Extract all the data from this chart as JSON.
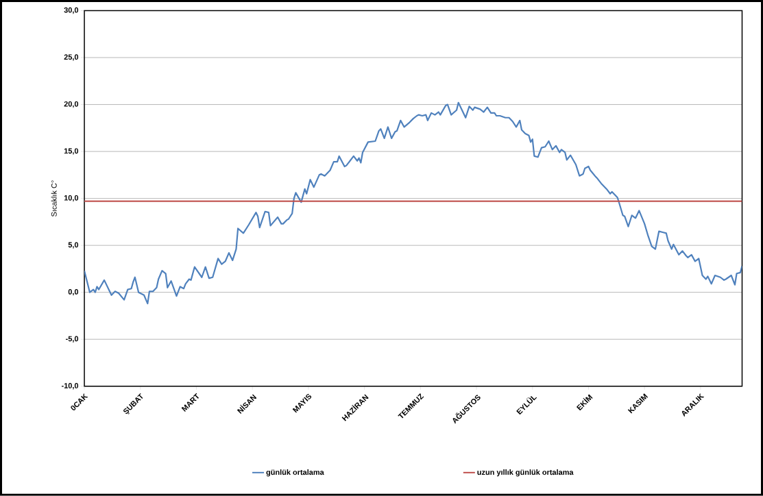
{
  "chart_data": {
    "type": "line",
    "ylabel": "Sıcaklık C°",
    "categories": [
      "0CAK",
      null,
      null,
      null,
      null,
      null,
      null,
      null,
      null,
      null,
      null,
      null,
      null,
      null,
      null,
      null,
      null,
      null,
      null,
      null,
      null,
      null,
      null,
      null,
      null,
      null,
      null,
      null,
      null,
      null,
      null,
      "ŞUBAT",
      null,
      null,
      null,
      null,
      null,
      null,
      null,
      null,
      null,
      null,
      null,
      null,
      null,
      null,
      null,
      null,
      null,
      null,
      null,
      null,
      null,
      null,
      null,
      null,
      null,
      null,
      null,
      null,
      null,
      null,
      "MART",
      null,
      null,
      null,
      null,
      null,
      null,
      null,
      null,
      null,
      null,
      null,
      null,
      null,
      null,
      null,
      null,
      null,
      null,
      null,
      null,
      null,
      null,
      null,
      null,
      null,
      null,
      null,
      null,
      null,
      null,
      "NİSAN",
      null,
      null,
      null,
      null,
      null,
      null,
      null,
      null,
      null,
      null,
      null,
      null,
      null,
      null,
      null,
      null,
      null,
      null,
      null,
      null,
      null,
      null,
      null,
      null,
      null,
      null,
      null,
      null,
      null,
      null,
      "MAYIS",
      null,
      null,
      null,
      null,
      null,
      null,
      null,
      null,
      null,
      null,
      null,
      null,
      null,
      null,
      null,
      null,
      null,
      null,
      null,
      null,
      null,
      null,
      null,
      null,
      null,
      null,
      null,
      null,
      null,
      null,
      "HAZİRAN",
      null,
      null,
      null,
      null,
      null,
      null,
      null,
      null,
      null,
      null,
      null,
      null,
      null,
      null,
      null,
      null,
      null,
      null,
      null,
      null,
      null,
      null,
      null,
      null,
      null,
      null,
      null,
      null,
      null,
      null,
      "TEMMUZ",
      null,
      null,
      null,
      null,
      null,
      null,
      null,
      null,
      null,
      null,
      null,
      null,
      null,
      null,
      null,
      null,
      null,
      null,
      null,
      null,
      null,
      null,
      null,
      null,
      null,
      null,
      null,
      null,
      null,
      null,
      "AĞUSTOS",
      null,
      null,
      null,
      null,
      null,
      null,
      null,
      null,
      null,
      null,
      null,
      null,
      null,
      null,
      null,
      null,
      null,
      null,
      null,
      null,
      null,
      null,
      null,
      null,
      null,
      null,
      null,
      null,
      null,
      null,
      "EYLÜL",
      null,
      null,
      null,
      null,
      null,
      null,
      null,
      null,
      null,
      null,
      null,
      null,
      null,
      null,
      null,
      null,
      null,
      null,
      null,
      null,
      null,
      null,
      null,
      null,
      null,
      null,
      null,
      null,
      null,
      null,
      "EKİM",
      null,
      null,
      null,
      null,
      null,
      null,
      null,
      null,
      null,
      null,
      null,
      null,
      null,
      null,
      null,
      null,
      null,
      null,
      null,
      null,
      null,
      null,
      null,
      null,
      null,
      null,
      null,
      null,
      null,
      null,
      "KASIM",
      null,
      null,
      null,
      null,
      null,
      null,
      null,
      null,
      null,
      null,
      null,
      null,
      null,
      null,
      null,
      null,
      null,
      null,
      null,
      null,
      null,
      null,
      null,
      null,
      null,
      null,
      null,
      null,
      null,
      null,
      "ARALIK",
      null,
      null,
      null,
      null,
      null,
      null,
      null,
      null,
      null,
      null,
      null,
      null,
      null,
      null,
      null,
      null,
      null,
      null,
      null,
      null,
      null,
      null,
      null
    ],
    "ylim": [
      -10,
      30
    ],
    "yticks": [
      {
        "value": -10,
        "label": "-10,0"
      },
      {
        "value": -5,
        "label": "-5,0"
      },
      {
        "value": 0,
        "label": "0,0"
      },
      {
        "value": 5,
        "label": "5,0"
      },
      {
        "value": 10,
        "label": "10,0"
      },
      {
        "value": 15,
        "label": "15,0"
      },
      {
        "value": 20,
        "label": "20,0"
      },
      {
        "value": 25,
        "label": "25,0"
      },
      {
        "value": 30,
        "label": "30,0"
      }
    ],
    "grid": "y",
    "legend": "bottom",
    "marker": "none",
    "line_style": "solid",
    "ref_lines": [
      {
        "axis": "y",
        "value": 9.7,
        "label": "uzun yıllık günlük ortalama",
        "color": "#c0504d"
      }
    ],
    "series": [
      {
        "name": "günlük ortalama",
        "color": "#4f81bd",
        "values": [
          2.3,
          null,
          null,
          0.0,
          null,
          0.3,
          0.0,
          0.6,
          0.3,
          null,
          null,
          1.3,
          null,
          null,
          null,
          -0.3,
          null,
          0.1,
          null,
          -0.1,
          null,
          null,
          -0.8,
          null,
          0.3,
          null,
          0.4,
          1.1,
          1.6,
          null,
          0.0,
          null,
          null,
          -0.3,
          null,
          -1.2,
          0.1,
          null,
          0.1,
          null,
          0.5,
          1.4,
          null,
          2.3,
          null,
          2.0,
          0.5,
          null,
          1.2,
          null,
          null,
          -0.4,
          null,
          0.6,
          null,
          0.4,
          0.9,
          null,
          1.4,
          1.3,
          null,
          2.7,
          null,
          null,
          null,
          1.6,
          null,
          2.7,
          null,
          1.5,
          null,
          1.6,
          null,
          null,
          3.6,
          null,
          3.0,
          null,
          3.3,
          null,
          4.2,
          null,
          3.4,
          null,
          4.6,
          6.8,
          null,
          null,
          6.3,
          null,
          null,
          7.2,
          null,
          null,
          null,
          8.5,
          8.1,
          6.9,
          null,
          null,
          8.6,
          null,
          8.5,
          7.1,
          null,
          null,
          null,
          8.0,
          null,
          7.3,
          7.3,
          null,
          7.7,
          7.8,
          null,
          8.4,
          10.0,
          10.6,
          null,
          null,
          9.6,
          null,
          11.0,
          10.5,
          null,
          12.0,
          null,
          11.2,
          null,
          null,
          12.5,
          12.6,
          null,
          12.4,
          null,
          null,
          13.0,
          null,
          13.9,
          null,
          13.9,
          14.5,
          null,
          null,
          13.4,
          13.5,
          null,
          null,
          null,
          14.5,
          null,
          14.0,
          14.3,
          13.8,
          14.9,
          null,
          null,
          16.0,
          null,
          null,
          null,
          16.1,
          null,
          17.2,
          17.4,
          null,
          16.4,
          null,
          17.6,
          null,
          16.4,
          null,
          17.1,
          17.2,
          null,
          18.3,
          null,
          17.6,
          null,
          null,
          18.1,
          null,
          18.5,
          null,
          18.8,
          18.9,
          null,
          18.8,
          null,
          18.9,
          18.3,
          null,
          19.1,
          null,
          18.9,
          null,
          19.2,
          18.9,
          null,
          null,
          19.9,
          20.0,
          null,
          18.9,
          null,
          null,
          19.4,
          20.2,
          null,
          19.4,
          null,
          18.6,
          null,
          19.8,
          null,
          19.4,
          19.7,
          null,
          null,
          19.5,
          null,
          19.2,
          null,
          19.7,
          null,
          19.1,
          null,
          19.1,
          18.8,
          null,
          18.8,
          null,
          null,
          18.6,
          null,
          18.6,
          null,
          18.2,
          null,
          17.6,
          null,
          18.3,
          17.3,
          null,
          16.9,
          null,
          16.7,
          16.0,
          16.3,
          14.5,
          null,
          14.4,
          null,
          15.4,
          null,
          15.5,
          null,
          16.1,
          null,
          15.2,
          null,
          15.6,
          null,
          14.9,
          15.2,
          null,
          14.9,
          14.1,
          null,
          14.6,
          null,
          null,
          13.6,
          null,
          12.4,
          null,
          12.6,
          13.2,
          null,
          13.4,
          13.0,
          null,
          null,
          12.3,
          12.1,
          null,
          11.6,
          null,
          null,
          11.0,
          null,
          10.5,
          10.7,
          null,
          null,
          10.1,
          9.5,
          null,
          8.2,
          8.1,
          null,
          7.0,
          null,
          8.2,
          null,
          7.9,
          null,
          8.7,
          null,
          null,
          7.3,
          null,
          6.0,
          null,
          4.9,
          null,
          4.6,
          null,
          6.5,
          null,
          6.4,
          null,
          6.3,
          5.5,
          null,
          4.6,
          5.1,
          null,
          null,
          4.0,
          null,
          4.4,
          null,
          3.9,
          3.7,
          null,
          4.0,
          null,
          3.3,
          null,
          3.6,
          null,
          1.8,
          null,
          1.4,
          1.7,
          null,
          0.9,
          null,
          1.8,
          null,
          null,
          1.6,
          null,
          1.3,
          1.4,
          null,
          null,
          1.8,
          null,
          0.8,
          2.0,
          null,
          2.1,
          2.8
        ]
      }
    ]
  }
}
